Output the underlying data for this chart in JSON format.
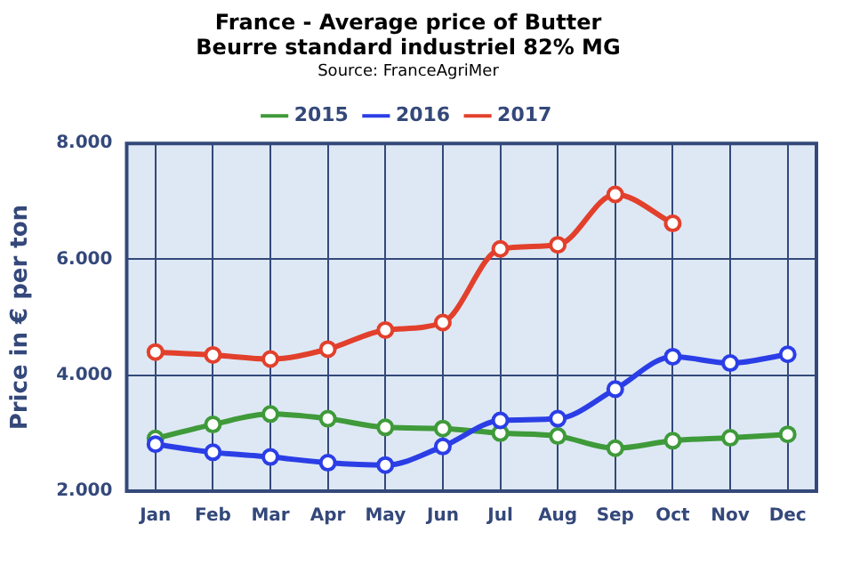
{
  "chart_data": {
    "type": "line",
    "title": "France - Average price of Butter\nBeurre standard industriel 82% MG",
    "subtitle": "Source: FranceAgriMer",
    "ylabel": "Price in € per ton",
    "categories": [
      "Jan",
      "Feb",
      "Mar",
      "Apr",
      "May",
      "Jun",
      "Jul",
      "Aug",
      "Sep",
      "Oct",
      "Nov",
      "Dec"
    ],
    "series": [
      {
        "name": "2015",
        "color": "#3f9a3a",
        "values": [
          2910,
          3150,
          3330,
          3250,
          3100,
          3080,
          3000,
          2950,
          2740,
          2870,
          2920,
          2980
        ]
      },
      {
        "name": "2016",
        "color": "#2b3ee6",
        "values": [
          2810,
          2670,
          2590,
          2490,
          2450,
          2770,
          3220,
          3250,
          3760,
          4320,
          4210,
          4360
        ]
      },
      {
        "name": "2017",
        "color": "#e2402c",
        "values": [
          4400,
          4350,
          4280,
          4450,
          4780,
          4910,
          6180,
          6250,
          7120,
          6620,
          null,
          null
        ]
      }
    ],
    "ylim": [
      2000,
      8000
    ],
    "yticks": [
      {
        "value": 2000,
        "label": "2.000"
      },
      {
        "value": 4000,
        "label": "4.000"
      },
      {
        "value": 6000,
        "label": "6.000"
      },
      {
        "value": 8000,
        "label": "8.000"
      }
    ],
    "grid": true,
    "legend": "top",
    "marker": "circle",
    "line_style": "solid"
  }
}
